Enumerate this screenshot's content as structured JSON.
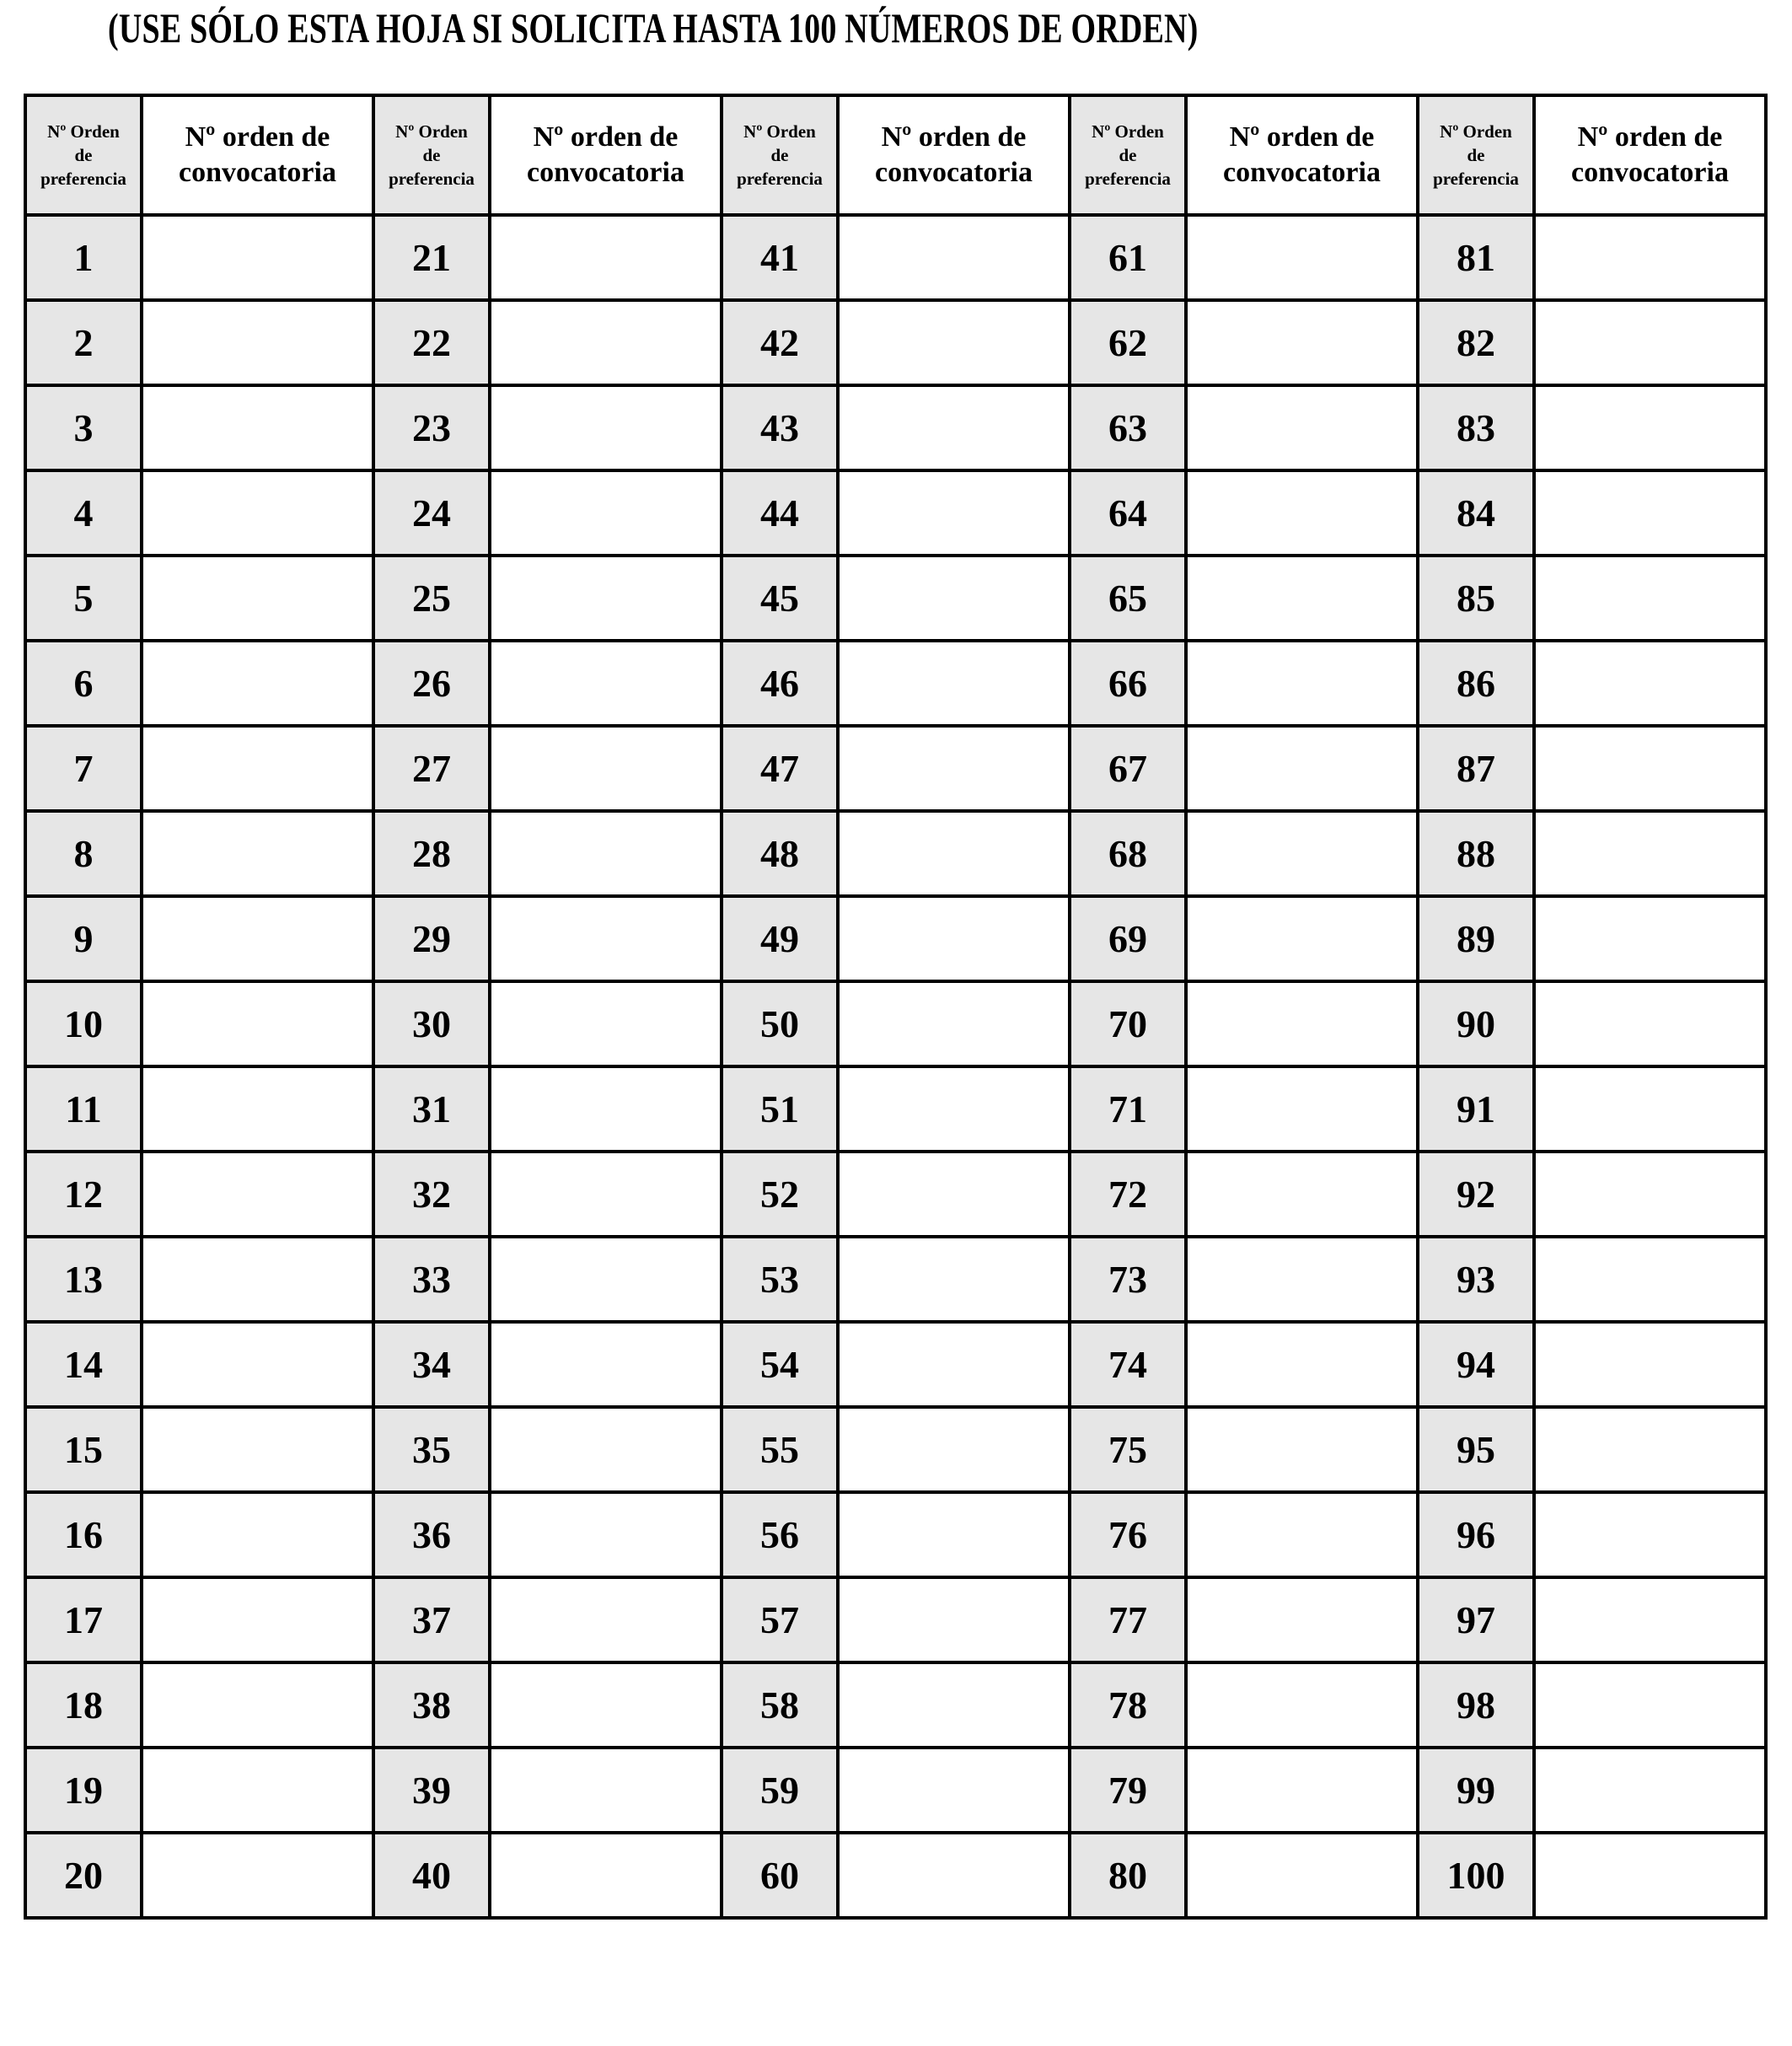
{
  "title": "(USE SÓLO ESTA HOJA SI SOLICITA HASTA 100 NÚMEROS DE ORDEN)",
  "colors": {
    "preference_cell_bg": "#e6e6e6",
    "border": "#000000"
  },
  "headers": {
    "preference": [
      "Nº Orden",
      "de",
      "preferencia"
    ],
    "convocatoria": [
      "Nº orden de",
      "convocatoria"
    ]
  },
  "groups": 5,
  "rows": [
    [
      "1",
      "21",
      "41",
      "61",
      "81"
    ],
    [
      "2",
      "22",
      "42",
      "62",
      "82"
    ],
    [
      "3",
      "23",
      "43",
      "63",
      "83"
    ],
    [
      "4",
      "24",
      "44",
      "64",
      "84"
    ],
    [
      "5",
      "25",
      "45",
      "65",
      "85"
    ],
    [
      "6",
      "26",
      "46",
      "66",
      "86"
    ],
    [
      "7",
      "27",
      "47",
      "67",
      "87"
    ],
    [
      "8",
      "28",
      "48",
      "68",
      "88"
    ],
    [
      "9",
      "29",
      "49",
      "69",
      "89"
    ],
    [
      "10",
      "30",
      "50",
      "70",
      "90"
    ],
    [
      "11",
      "31",
      "51",
      "71",
      "91"
    ],
    [
      "12",
      "32",
      "52",
      "72",
      "92"
    ],
    [
      "13",
      "33",
      "53",
      "73",
      "93"
    ],
    [
      "14",
      "34",
      "54",
      "74",
      "94"
    ],
    [
      "15",
      "35",
      "55",
      "75",
      "95"
    ],
    [
      "16",
      "36",
      "56",
      "76",
      "96"
    ],
    [
      "17",
      "37",
      "57",
      "77",
      "97"
    ],
    [
      "18",
      "38",
      "58",
      "78",
      "98"
    ],
    [
      "19",
      "39",
      "59",
      "79",
      "99"
    ],
    [
      "20",
      "40",
      "60",
      "80",
      "100"
    ]
  ]
}
